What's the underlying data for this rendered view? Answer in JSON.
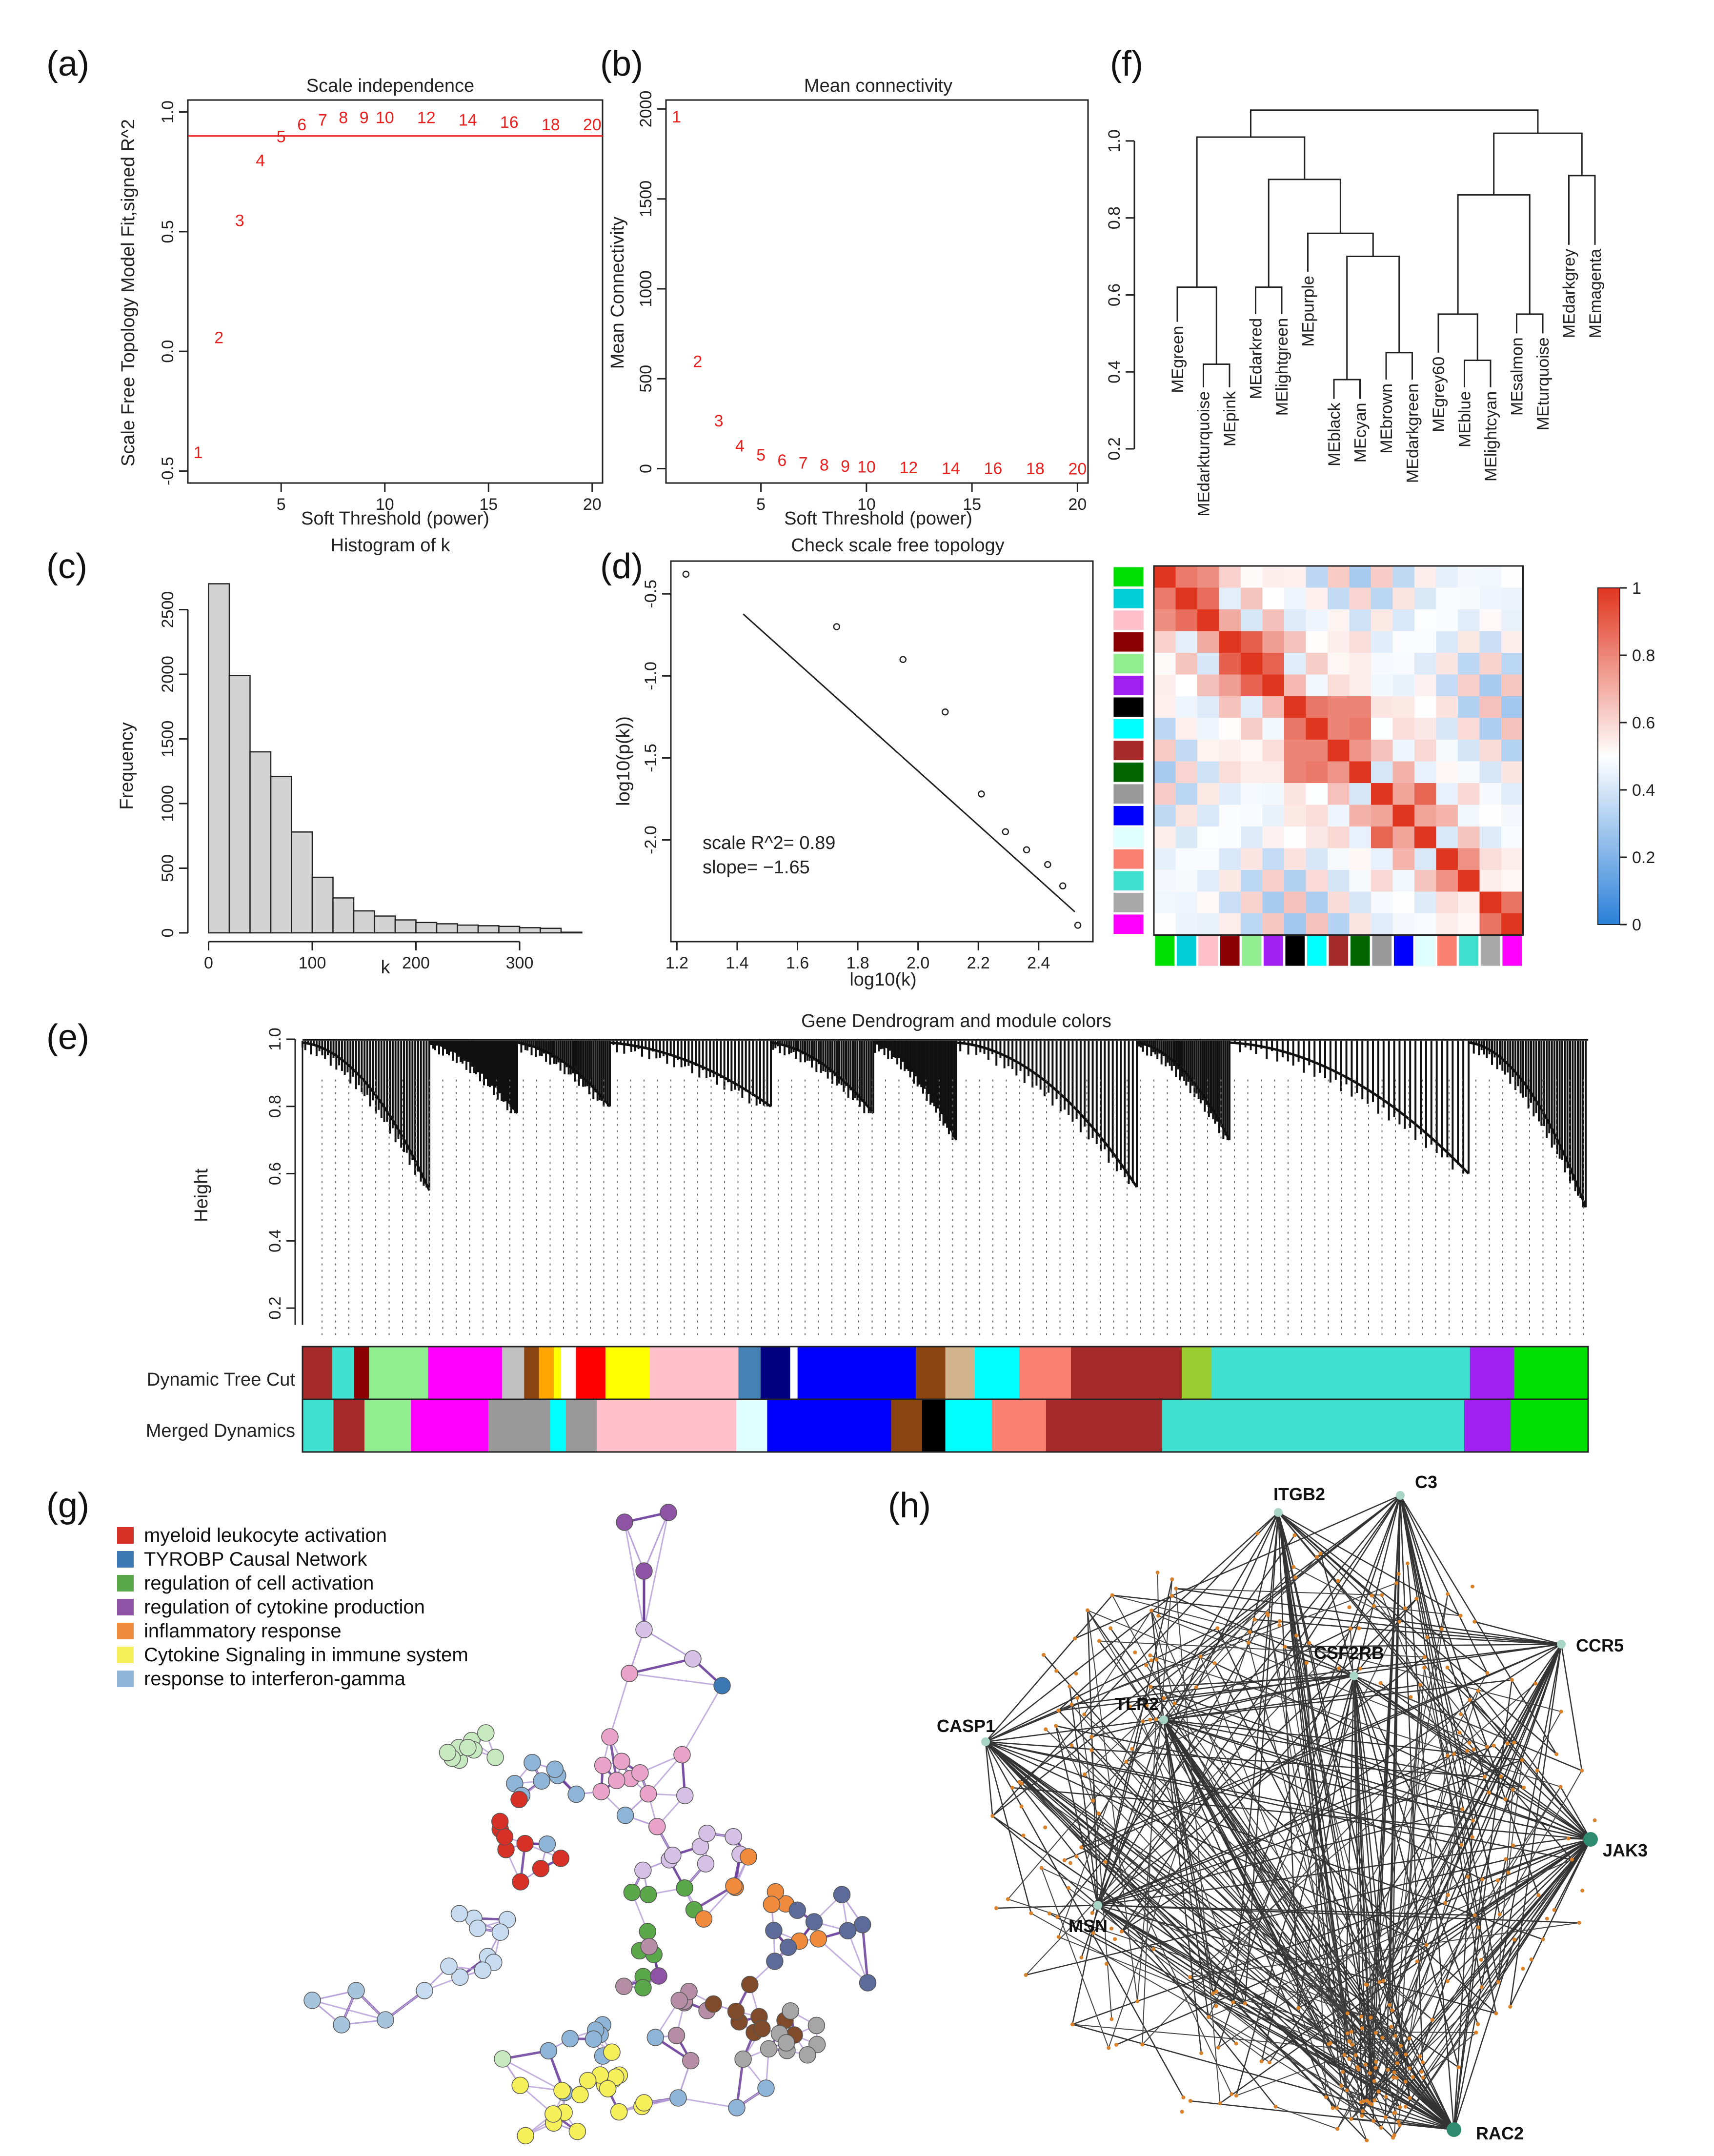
{
  "panels": {
    "a": {
      "label": "(a)",
      "title": "Scale independence",
      "xlabel": "Soft Threshold (power)",
      "ylabel": "Scale Free Topology Model Fit,signed R^2",
      "xticks": [
        "5",
        "10",
        "15",
        "20"
      ],
      "yticks": [
        "-0.5",
        "0.0",
        "0.5",
        "1.0"
      ]
    },
    "b": {
      "label": "(b)",
      "title": "Mean connectivity",
      "xlabel": "Soft Threshold (power)",
      "ylabel": "Mean Connectivity",
      "xticks": [
        "5",
        "10",
        "15",
        "20"
      ],
      "yticks": [
        "0",
        "500",
        "1000",
        "1500",
        "2000"
      ]
    },
    "c": {
      "label": "(c)",
      "title": "Histogram of k",
      "xlabel": "k",
      "ylabel": "Frequency",
      "xticks": [
        "0",
        "100",
        "200",
        "300"
      ],
      "yticks": [
        "0",
        "500",
        "1000",
        "1500",
        "2000",
        "2500"
      ]
    },
    "d": {
      "label": "(d)",
      "title": "Check scale free topology",
      "xlabel": "log10(k)",
      "ylabel": "log10(p(k))",
      "xticks": [
        "1.2",
        "1.4",
        "1.6",
        "1.8",
        "2.0",
        "2.2",
        "2.4"
      ],
      "yticks": [
        "-2.0",
        "-1.5",
        "-1.0",
        "-0.5"
      ],
      "annot1": "scale R^2= 0.89",
      "annot2": "slope= −1.65"
    },
    "e": {
      "label": "(e)",
      "title": "Gene Dendrogram and module colors",
      "ylabel": "Height",
      "yticks": [
        "0.2",
        "0.4",
        "0.6",
        "0.8",
        "1.0"
      ],
      "row1": "Dynamic Tree Cut",
      "row2": "Merged Dynamics"
    },
    "f": {
      "label": "(f)",
      "yticks": [
        "0.2",
        "0.4",
        "0.6",
        "0.8",
        "1.0"
      ],
      "colorbar_ticks": [
        "0",
        "0.2",
        "0.4",
        "0.6",
        "0.8",
        "1"
      ]
    },
    "g": {
      "label": "(g)"
    },
    "h": {
      "label": "(h)"
    }
  },
  "chart_data": [
    {
      "id": "a",
      "type": "scatter",
      "title": "Scale independence",
      "xlabel": "Soft Threshold (power)",
      "ylabel": "Scale Free Topology Model Fit,signed R^2",
      "x": [
        1,
        2,
        3,
        4,
        5,
        6,
        7,
        8,
        9,
        10,
        12,
        14,
        16,
        18,
        20
      ],
      "y": [
        -0.42,
        0.06,
        0.55,
        0.8,
        0.9,
        0.95,
        0.97,
        0.98,
        0.98,
        0.98,
        0.98,
        0.97,
        0.96,
        0.95,
        0.95
      ],
      "point_labels": [
        "1",
        "2",
        "3",
        "4",
        "5",
        "6",
        "7",
        "8",
        "9",
        "10",
        "12",
        "14",
        "16",
        "18",
        "20"
      ],
      "hline": 0.9,
      "xlim": [
        0.5,
        20.5
      ],
      "ylim": [
        -0.55,
        1.05
      ]
    },
    {
      "id": "b",
      "type": "scatter",
      "title": "Mean connectivity",
      "xlabel": "Soft Threshold (power)",
      "ylabel": "Mean Connectivity",
      "x": [
        1,
        2,
        3,
        4,
        5,
        6,
        7,
        8,
        9,
        10,
        12,
        14,
        16,
        18,
        20
      ],
      "y": [
        1960,
        600,
        270,
        130,
        80,
        50,
        35,
        25,
        18,
        14,
        9,
        6,
        5,
        4,
        3
      ],
      "point_labels": [
        "1",
        "2",
        "3",
        "4",
        "5",
        "6",
        "7",
        "8",
        "9",
        "10",
        "12",
        "14",
        "16",
        "18",
        "20"
      ],
      "xlim": [
        0.5,
        20.5
      ],
      "ylim": [
        -80,
        2050
      ]
    },
    {
      "id": "c",
      "type": "bar",
      "title": "Histogram of k",
      "xlabel": "k",
      "ylabel": "Frequency",
      "bin_width": 20,
      "bin_start": 0,
      "values": [
        2700,
        1990,
        1400,
        1210,
        780,
        430,
        270,
        170,
        130,
        100,
        80,
        70,
        60,
        55,
        50,
        40,
        35,
        5
      ],
      "xlim": [
        -20,
        380
      ],
      "ylim": [
        0,
        2800
      ]
    },
    {
      "id": "d",
      "type": "scatter",
      "title": "Check scale free topology",
      "xlabel": "log10(k)",
      "ylabel": "log10(p(k))",
      "x": [
        1.23,
        1.73,
        1.95,
        2.09,
        2.21,
        2.29,
        2.36,
        2.43,
        2.48,
        2.53
      ],
      "y": [
        -0.38,
        -0.7,
        -0.9,
        -1.22,
        -1.72,
        -1.95,
        -2.06,
        -2.15,
        -2.28,
        -2.52
      ],
      "fit_line": {
        "slope": -1.65,
        "intercept": 1.72
      },
      "xlim": [
        1.18,
        2.58
      ],
      "ylim": [
        -2.62,
        -0.3
      ]
    },
    {
      "id": "f-dendrogram",
      "type": "dendrogram",
      "leaves": [
        "MEgreen",
        "MEdarkturquoise",
        "MEpink",
        "MEdarkred",
        "MElightgreen",
        "MEpurple",
        "MEblack",
        "MEcyan",
        "MEbrown",
        "MEdarkgreen",
        "MEgrey60",
        "MEblue",
        "MElightcyan",
        "MEsalmon",
        "MEturquoise",
        "MEdarkgrey",
        "MEmagenta"
      ],
      "ylim": [
        0.2,
        1.1
      ]
    },
    {
      "id": "f-heatmap",
      "type": "heatmap",
      "range": [
        0,
        1
      ],
      "colors": [
        "#00e000",
        "#00cfd8",
        "#ffc0cb",
        "#8b0000",
        "#90ee90",
        "#a020f0",
        "#000000",
        "#00ffff",
        "#a52a2a",
        "#006400",
        "#999999",
        "#0000ff",
        "#e0ffff",
        "#fa8072",
        "#40e0d0",
        "#a9a9a9",
        "#ff00ff"
      ],
      "groups": [
        [
          0,
          1,
          2
        ],
        [
          3,
          4,
          5
        ],
        [
          6,
          7,
          8,
          9
        ],
        [
          10,
          11,
          12
        ],
        [
          13,
          14
        ],
        [
          15,
          16
        ]
      ]
    },
    {
      "id": "e",
      "type": "dendrogram",
      "title": "Gene Dendrogram and module colors",
      "ylabel": "Height",
      "ylim": [
        0.1,
        1.0
      ],
      "dynamic_tree_cut": [
        [
          "#a52a2a",
          4
        ],
        [
          "#40e0d0",
          3
        ],
        [
          "#8b0000",
          2
        ],
        [
          "#90ee90",
          8
        ],
        [
          "#ff00ff",
          10
        ],
        [
          "#c0c0c0",
          3
        ],
        [
          "#8b4513",
          2
        ],
        [
          "#ffa500",
          2
        ],
        [
          "#ffff00",
          1
        ],
        [
          "#ffffff",
          2
        ],
        [
          "#ff0000",
          4
        ],
        [
          "#ffff00",
          6
        ],
        [
          "#ffc0cb",
          12
        ],
        [
          "#4682b4",
          3
        ],
        [
          "#000080",
          4
        ],
        [
          "#ffffff",
          1
        ],
        [
          "#0000ff",
          16
        ],
        [
          "#8b4513",
          4
        ],
        [
          "#d2b48c",
          4
        ],
        [
          "#00ffff",
          6
        ],
        [
          "#fa8072",
          7
        ],
        [
          "#a52a2a",
          15
        ],
        [
          "#9acd32",
          4
        ],
        [
          "#40e0d0",
          35
        ],
        [
          "#a020f0",
          6
        ],
        [
          "#00e000",
          10
        ]
      ],
      "merged_dynamics": [
        [
          "#40e0d0",
          4
        ],
        [
          "#a52a2a",
          4
        ],
        [
          "#90ee90",
          6
        ],
        [
          "#ff00ff",
          10
        ],
        [
          "#999999",
          8
        ],
        [
          "#00ffff",
          2
        ],
        [
          "#999999",
          4
        ],
        [
          "#ffc0cb",
          18
        ],
        [
          "#e0ffff",
          4
        ],
        [
          "#0000ff",
          16
        ],
        [
          "#8b4513",
          4
        ],
        [
          "#000000",
          3
        ],
        [
          "#00ffff",
          6
        ],
        [
          "#fa8072",
          7
        ],
        [
          "#a52a2a",
          15
        ],
        [
          "#40e0d0",
          39
        ],
        [
          "#a020f0",
          6
        ],
        [
          "#00e000",
          10
        ]
      ]
    }
  ],
  "network_g": {
    "legend": [
      {
        "label": "myeloid leukocyte activation",
        "color": "#d73027"
      },
      {
        "label": "TYROBP Causal Network",
        "color": "#3c78b4"
      },
      {
        "label": "regulation of cell activation",
        "color": "#5aa84a"
      },
      {
        "label": "regulation of cytokine production",
        "color": "#8e53a5"
      },
      {
        "label": "inflammatory response",
        "color": "#f08a3c"
      },
      {
        "label": "Cytokine Signaling in immune system",
        "color": "#f5f05a"
      },
      {
        "label": "response to interferon-gamma",
        "color": "#8eb5d8"
      }
    ]
  },
  "network_h": {
    "hubs": [
      "ITGB2",
      "C3",
      "CCR5",
      "CSF2RB",
      "TLR2",
      "CASP1",
      "JAK3",
      "MSN",
      "RAC2"
    ]
  }
}
